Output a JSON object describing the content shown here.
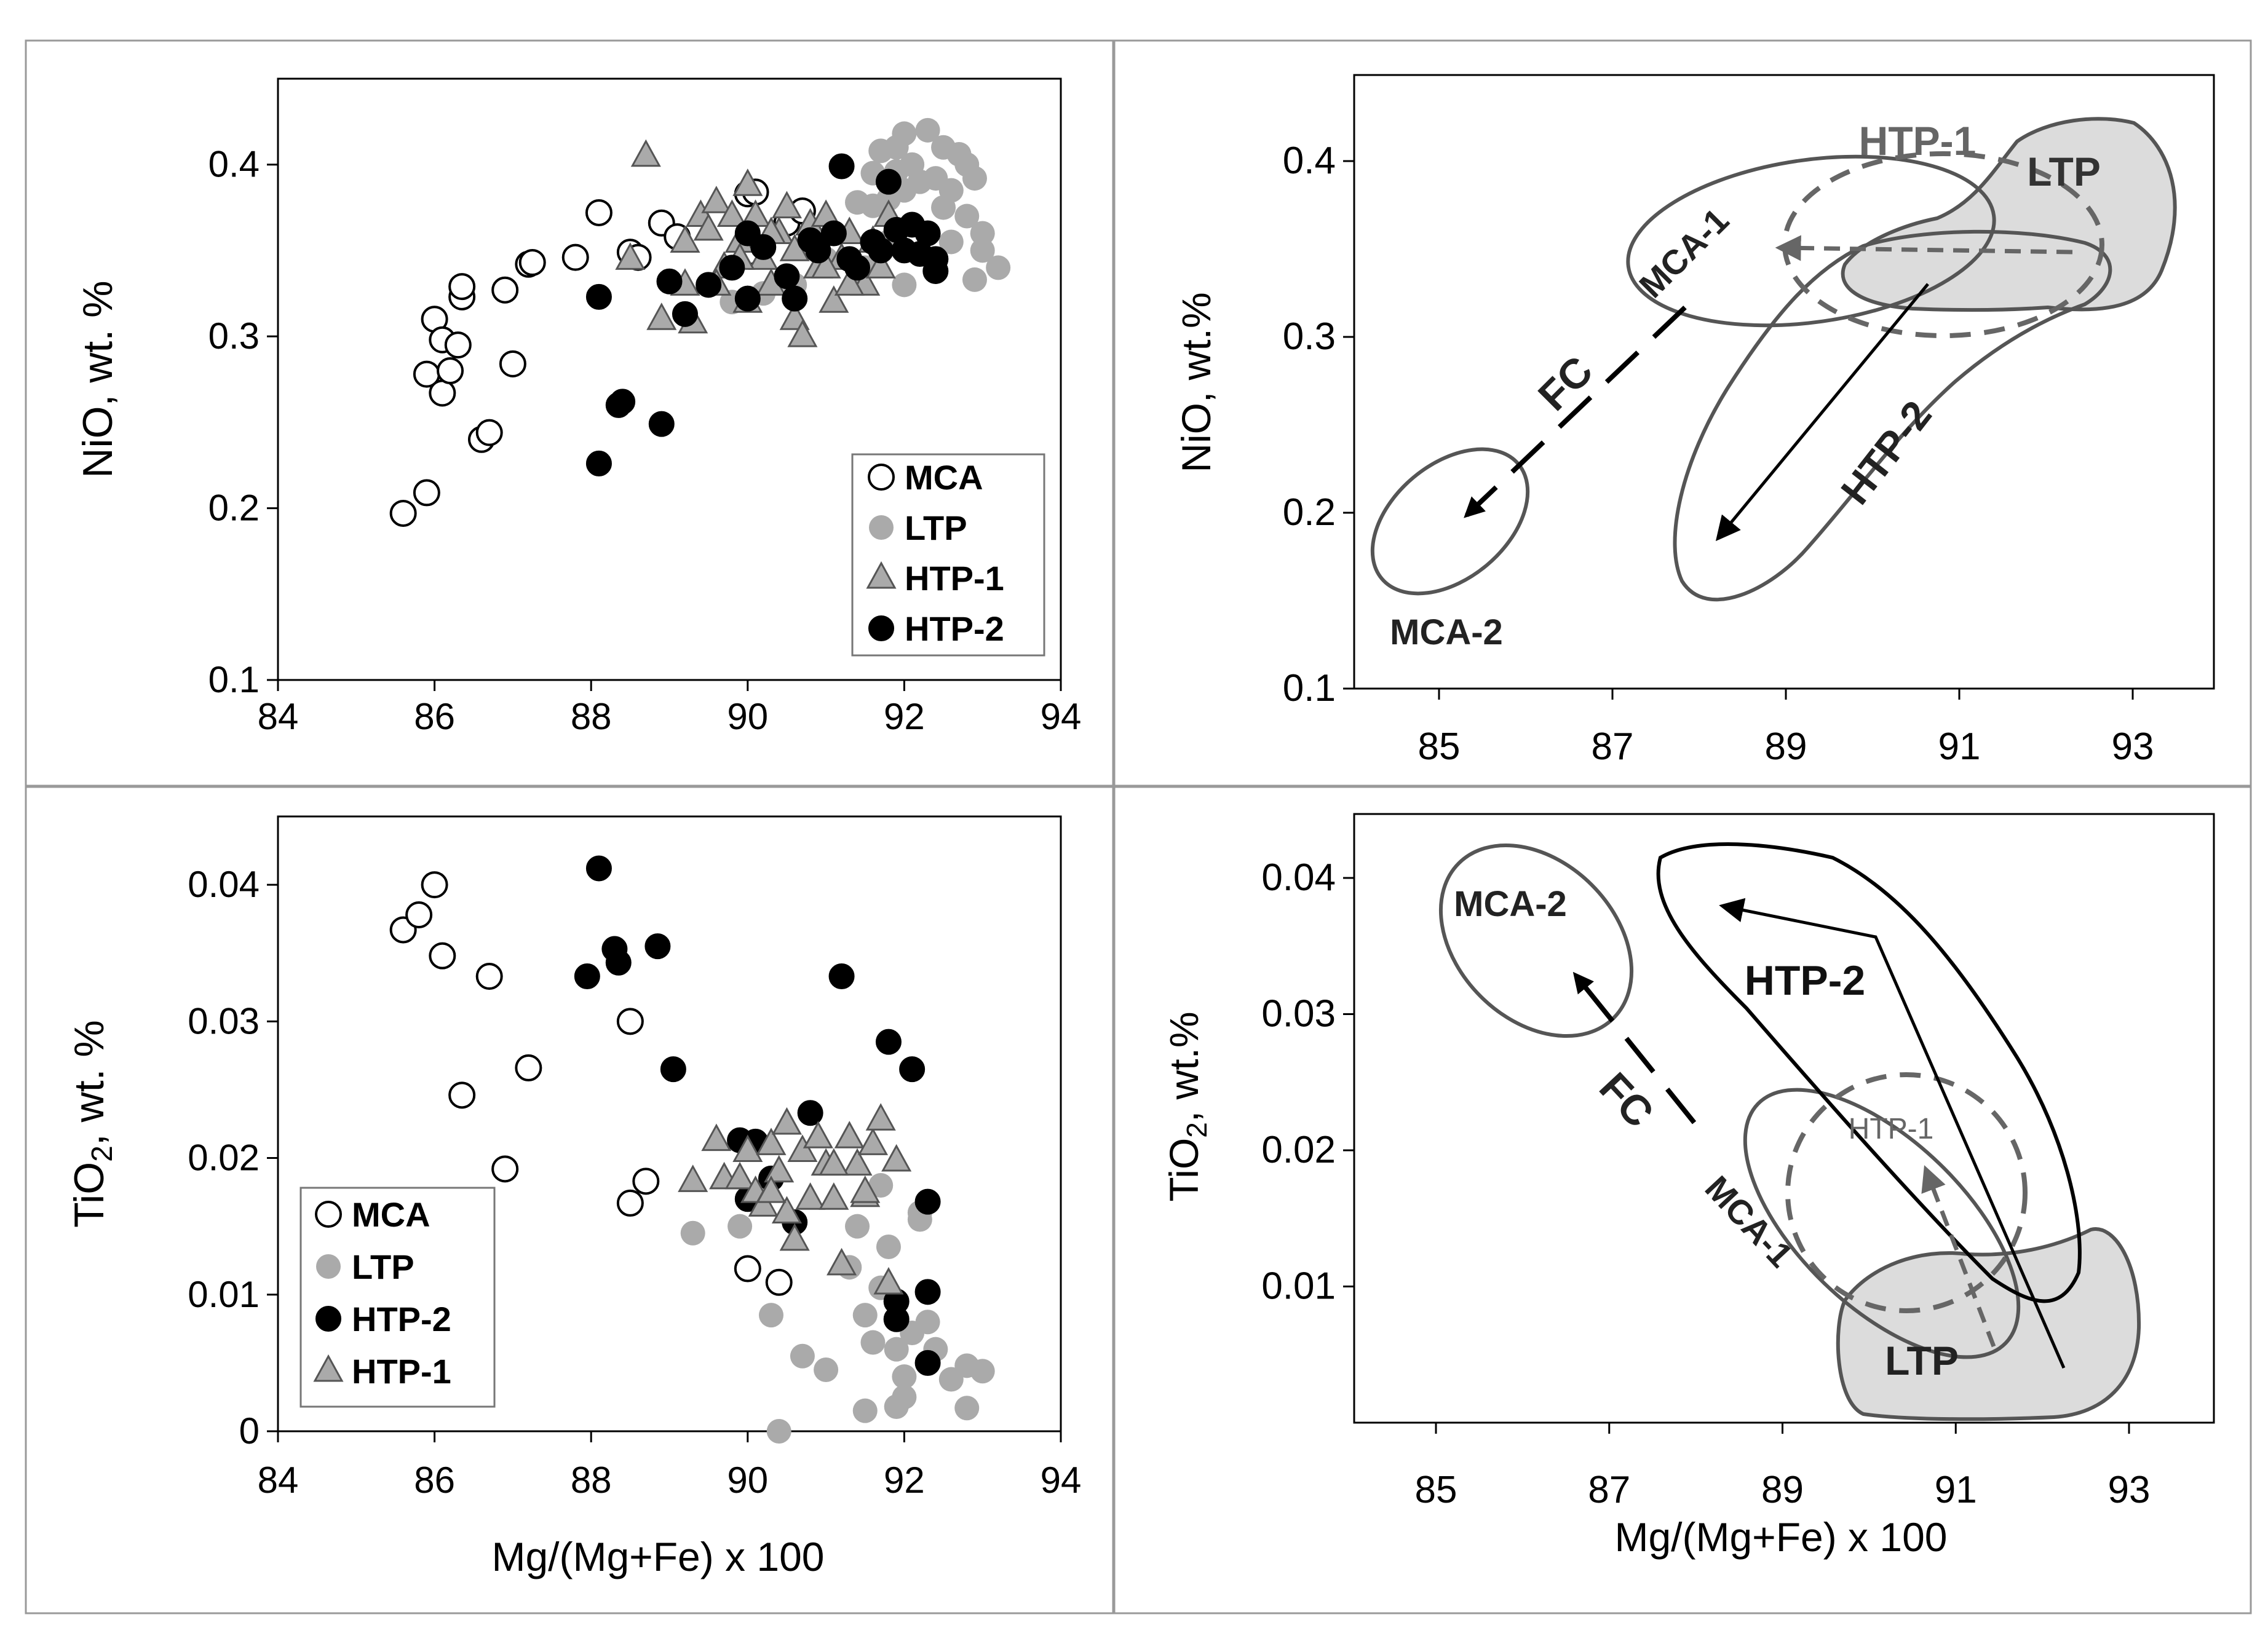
{
  "chart_data": [
    {
      "id": "top-left",
      "type": "scatter",
      "xlabel": "",
      "ylabel": "NiO, wt. %",
      "xlim": [
        84,
        94
      ],
      "ylim": [
        0.1,
        0.45
      ],
      "xticks": [
        "84",
        "86",
        "88",
        "90",
        "92",
        "94"
      ],
      "yticks": [
        "0.1",
        "0.2",
        "0.3",
        "0.4"
      ],
      "legend_position": "bottom-right",
      "legend": [
        "MCA",
        "LTP",
        "HTP-1",
        "HTP-2"
      ],
      "series": [
        {
          "name": "MCA",
          "marker": "open-circle",
          "points": [
            [
              85.6,
              0.197
            ],
            [
              85.9,
              0.209
            ],
            [
              85.9,
              0.278
            ],
            [
              86.0,
              0.31
            ],
            [
              86.1,
              0.298
            ],
            [
              86.1,
              0.267
            ],
            [
              86.2,
              0.28
            ],
            [
              86.3,
              0.295
            ],
            [
              86.35,
              0.323
            ],
            [
              86.35,
              0.329
            ],
            [
              86.6,
              0.24
            ],
            [
              86.7,
              0.244
            ],
            [
              86.9,
              0.327
            ],
            [
              87.0,
              0.284
            ],
            [
              87.2,
              0.342
            ],
            [
              87.25,
              0.343
            ],
            [
              87.8,
              0.346
            ],
            [
              88.1,
              0.372
            ],
            [
              88.5,
              0.349
            ],
            [
              88.6,
              0.346
            ],
            [
              88.9,
              0.366
            ],
            [
              89.1,
              0.358
            ],
            [
              90.0,
              0.383
            ],
            [
              90.1,
              0.384
            ],
            [
              90.0,
              0.349
            ],
            [
              90.5,
              0.366
            ],
            [
              90.7,
              0.373
            ]
          ]
        },
        {
          "name": "LTP",
          "marker": "grey-circle",
          "points": [
            [
              91.7,
              0.408
            ],
            [
              91.9,
              0.41
            ],
            [
              92.0,
              0.418
            ],
            [
              92.3,
              0.42
            ],
            [
              92.5,
              0.41
            ],
            [
              92.7,
              0.406
            ],
            [
              92.8,
              0.4
            ],
            [
              92.9,
              0.392
            ],
            [
              92.6,
              0.385
            ],
            [
              92.4,
              0.392
            ],
            [
              92.2,
              0.39
            ],
            [
              92.0,
              0.385
            ],
            [
              91.8,
              0.38
            ],
            [
              91.6,
              0.376
            ],
            [
              91.4,
              0.378
            ],
            [
              91.6,
              0.395
            ],
            [
              91.9,
              0.396
            ],
            [
              92.1,
              0.4
            ],
            [
              92.5,
              0.375
            ],
            [
              92.8,
              0.37
            ],
            [
              93.0,
              0.36
            ],
            [
              93.0,
              0.35
            ],
            [
              93.2,
              0.34
            ],
            [
              92.9,
              0.333
            ],
            [
              92.0,
              0.33
            ],
            [
              91.5,
              0.34
            ],
            [
              91.0,
              0.345
            ],
            [
              90.6,
              0.33
            ],
            [
              90.2,
              0.325
            ],
            [
              89.8,
              0.32
            ],
            [
              92.3,
              0.36
            ],
            [
              92.6,
              0.355
            ],
            [
              91.8,
              0.355
            ]
          ]
        },
        {
          "name": "HTP-1",
          "marker": "grey-triangle",
          "points": [
            [
              88.7,
              0.405
            ],
            [
              88.5,
              0.345
            ],
            [
              88.9,
              0.31
            ],
            [
              89.2,
              0.33
            ],
            [
              89.3,
              0.308
            ],
            [
              89.2,
              0.355
            ],
            [
              89.4,
              0.37
            ],
            [
              89.5,
              0.362
            ],
            [
              89.6,
              0.378
            ],
            [
              89.7,
              0.34
            ],
            [
              89.8,
              0.37
            ],
            [
              89.9,
              0.355
            ],
            [
              90.0,
              0.388
            ],
            [
              90.1,
              0.37
            ],
            [
              90.2,
              0.345
            ],
            [
              90.3,
              0.33
            ],
            [
              90.4,
              0.36
            ],
            [
              90.5,
              0.375
            ],
            [
              90.6,
              0.31
            ],
            [
              90.6,
              0.35
            ],
            [
              90.7,
              0.3
            ],
            [
              90.8,
              0.365
            ],
            [
              90.9,
              0.34
            ],
            [
              91.0,
              0.37
            ],
            [
              91.1,
              0.32
            ],
            [
              91.2,
              0.345
            ],
            [
              91.3,
              0.36
            ],
            [
              91.4,
              0.335
            ],
            [
              91.5,
              0.33
            ],
            [
              91.6,
              0.355
            ],
            [
              91.7,
              0.34
            ],
            [
              91.8,
              0.37
            ],
            [
              89.6,
              0.33
            ],
            [
              90.0,
              0.32
            ],
            [
              90.3,
              0.36
            ],
            [
              91.0,
              0.34
            ],
            [
              91.3,
              0.33
            ],
            [
              89.9,
              0.345
            ]
          ]
        },
        {
          "name": "HTP-2",
          "marker": "black-circle",
          "points": [
            [
              88.1,
              0.226
            ],
            [
              88.35,
              0.26
            ],
            [
              88.4,
              0.262
            ],
            [
              88.9,
              0.249
            ],
            [
              88.1,
              0.323
            ],
            [
              89.0,
              0.332
            ],
            [
              89.2,
              0.313
            ],
            [
              89.8,
              0.34
            ],
            [
              90.0,
              0.322
            ],
            [
              90.2,
              0.352
            ],
            [
              90.5,
              0.335
            ],
            [
              90.6,
              0.322
            ],
            [
              90.8,
              0.356
            ],
            [
              91.1,
              0.36
            ],
            [
              91.2,
              0.399
            ],
            [
              91.3,
              0.345
            ],
            [
              91.4,
              0.34
            ],
            [
              91.6,
              0.355
            ],
            [
              91.8,
              0.39
            ],
            [
              91.9,
              0.362
            ],
            [
              92.0,
              0.35
            ],
            [
              92.1,
              0.365
            ],
            [
              92.2,
              0.348
            ],
            [
              92.3,
              0.36
            ],
            [
              92.4,
              0.345
            ],
            [
              92.4,
              0.338
            ],
            [
              91.7,
              0.35
            ],
            [
              90.9,
              0.35
            ],
            [
              90.0,
              0.36
            ],
            [
              89.5,
              0.33
            ]
          ]
        }
      ]
    },
    {
      "id": "top-right",
      "type": "field-diagram",
      "xlabel": "",
      "ylabel": "NiO, wt.%",
      "xlim": [
        84,
        94
      ],
      "ylim": [
        0.1,
        0.45
      ],
      "xticks": [
        "85",
        "87",
        "89",
        "91",
        "93"
      ],
      "yticks": [
        "0.1",
        "0.2",
        "0.3",
        "0.4"
      ],
      "fields": [
        "MCA-1",
        "MCA-2",
        "HTP-1",
        "HTP-2",
        "LTP"
      ],
      "annotations": [
        "FC"
      ]
    },
    {
      "id": "bottom-left",
      "type": "scatter",
      "xlabel": "Mg/(Mg+Fe) x 100",
      "ylabel_prefix": "TiO",
      "ylabel_sub": "2",
      "ylabel_suffix": ", wt. %",
      "xlim": [
        84,
        94
      ],
      "ylim": [
        0,
        0.045
      ],
      "xticks": [
        "84",
        "86",
        "88",
        "90",
        "92",
        "94"
      ],
      "yticks": [
        "0",
        "0.01",
        "0.02",
        "0.03",
        "0.04"
      ],
      "legend_position": "bottom-left",
      "legend": [
        "MCA",
        "LTP",
        "HTP-2",
        "HTP-1"
      ],
      "series": [
        {
          "name": "MCA",
          "marker": "open-circle",
          "points": [
            [
              85.6,
              0.0367
            ],
            [
              85.8,
              0.0378
            ],
            [
              86.0,
              0.04
            ],
            [
              86.1,
              0.0348
            ],
            [
              86.35,
              0.0246
            ],
            [
              86.7,
              0.0333
            ],
            [
              86.9,
              0.0192
            ],
            [
              87.2,
              0.0266
            ],
            [
              88.5,
              0.03
            ],
            [
              88.5,
              0.0167
            ],
            [
              88.7,
              0.0183
            ],
            [
              90.0,
              0.0119
            ],
            [
              90.4,
              0.0109
            ]
          ]
        },
        {
          "name": "LTP",
          "marker": "grey-circle",
          "points": [
            [
              89.3,
              0.0145
            ],
            [
              89.9,
              0.015
            ],
            [
              90.3,
              0.0085
            ],
            [
              90.4,
              0.0
            ],
            [
              90.7,
              0.0055
            ],
            [
              91.0,
              0.0045
            ],
            [
              91.3,
              0.012
            ],
            [
              91.5,
              0.0085
            ],
            [
              91.5,
              0.0015
            ],
            [
              91.6,
              0.0065
            ],
            [
              91.7,
              0.0105
            ],
            [
              91.8,
              0.0135
            ],
            [
              91.9,
              0.006
            ],
            [
              92.0,
              0.004
            ],
            [
              92.0,
              0.0025
            ],
            [
              92.1,
              0.0072
            ],
            [
              92.2,
              0.0155
            ],
            [
              92.3,
              0.008
            ],
            [
              92.4,
              0.006
            ],
            [
              92.6,
              0.0038
            ],
            [
              92.8,
              0.0048
            ],
            [
              93.0,
              0.0044
            ],
            [
              92.8,
              0.0017
            ],
            [
              91.9,
              0.0018
            ],
            [
              92.2,
              0.016
            ],
            [
              91.7,
              0.018
            ],
            [
              91.4,
              0.015
            ]
          ]
        },
        {
          "name": "HTP-2",
          "marker": "black-circle",
          "points": [
            [
              88.1,
              0.0412
            ],
            [
              88.3,
              0.0353
            ],
            [
              88.35,
              0.0343
            ],
            [
              88.85,
              0.0355
            ],
            [
              87.95,
              0.0333
            ],
            [
              89.05,
              0.0265
            ],
            [
              89.9,
              0.0213
            ],
            [
              90.1,
              0.0212
            ],
            [
              90.0,
              0.017
            ],
            [
              90.3,
              0.0185
            ],
            [
              90.6,
              0.0153
            ],
            [
              90.8,
              0.0233
            ],
            [
              91.2,
              0.0333
            ],
            [
              91.8,
              0.0285
            ],
            [
              92.1,
              0.0265
            ],
            [
              92.3,
              0.0168
            ],
            [
              92.3,
              0.0102
            ],
            [
              92.3,
              0.005
            ],
            [
              91.9,
              0.0095
            ],
            [
              91.9,
              0.0082
            ]
          ]
        },
        {
          "name": "HTP-1",
          "marker": "grey-triangle",
          "points": [
            [
              89.3,
              0.0183
            ],
            [
              89.6,
              0.0213
            ],
            [
              89.7,
              0.0185
            ],
            [
              89.9,
              0.0185
            ],
            [
              90.0,
              0.0205
            ],
            [
              90.1,
              0.0175
            ],
            [
              90.2,
              0.0165
            ],
            [
              90.3,
              0.021
            ],
            [
              90.4,
              0.019
            ],
            [
              90.5,
              0.0225
            ],
            [
              90.5,
              0.016
            ],
            [
              90.6,
              0.014
            ],
            [
              90.7,
              0.0205
            ],
            [
              90.8,
              0.017
            ],
            [
              90.9,
              0.0215
            ],
            [
              91.0,
              0.0195
            ],
            [
              91.1,
              0.017
            ],
            [
              91.2,
              0.0122
            ],
            [
              91.3,
              0.0215
            ],
            [
              91.4,
              0.0195
            ],
            [
              91.5,
              0.0172
            ],
            [
              91.6,
              0.021
            ],
            [
              91.7,
              0.0228
            ],
            [
              91.8,
              0.0108
            ],
            [
              91.9,
              0.0198
            ],
            [
              91.5,
              0.0175
            ],
            [
              90.3,
              0.0175
            ],
            [
              91.1,
              0.0195
            ]
          ]
        }
      ]
    },
    {
      "id": "bottom-right",
      "type": "field-diagram",
      "xlabel": "Mg/(Mg+Fe) x 100",
      "ylabel_prefix": "TiO",
      "ylabel_sub": "2",
      "ylabel_suffix": ", wt.%",
      "xlim": [
        84,
        94
      ],
      "ylim": [
        0,
        0.045
      ],
      "xticks": [
        "85",
        "87",
        "89",
        "91",
        "93"
      ],
      "yticks": [
        "0.01",
        "0.02",
        "0.03",
        "0.04"
      ],
      "fields": [
        "MCA-2",
        "HTP-2",
        "HTP-1",
        "MCA-1",
        "LTP"
      ],
      "annotations": [
        "FC"
      ]
    }
  ]
}
